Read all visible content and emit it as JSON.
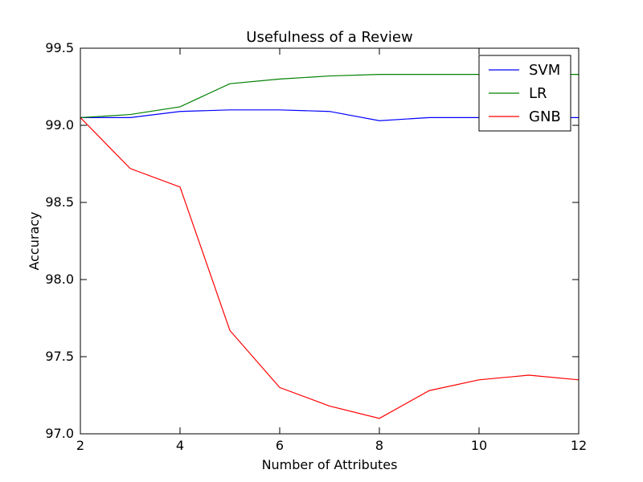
{
  "chart_data": {
    "type": "line",
    "title": "Usefulness of a Review",
    "xlabel": "Number of Attributes",
    "ylabel": "Accuracy",
    "xlim": [
      2,
      12
    ],
    "ylim": [
      97.0,
      99.5
    ],
    "x_ticks": [
      "2",
      "4",
      "6",
      "8",
      "10",
      "12"
    ],
    "y_ticks": [
      "97.0",
      "97.5",
      "98.0",
      "98.5",
      "99.0",
      "99.5"
    ],
    "grid": false,
    "legend_position": "top-right",
    "x": [
      2,
      3,
      4,
      5,
      6,
      7,
      8,
      9,
      10,
      11,
      12
    ],
    "series": [
      {
        "name": "SVM",
        "color": "#0000ff",
        "values": [
          99.05,
          99.05,
          99.09,
          99.1,
          99.1,
          99.09,
          99.03,
          99.05,
          99.05,
          99.05,
          99.05
        ]
      },
      {
        "name": "LR",
        "color": "#008000",
        "values": [
          99.05,
          99.07,
          99.12,
          99.27,
          99.3,
          99.32,
          99.33,
          99.33,
          99.33,
          99.33,
          99.33
        ]
      },
      {
        "name": "GNB",
        "color": "#ff0000",
        "values": [
          99.05,
          98.72,
          98.6,
          97.67,
          97.3,
          97.18,
          97.1,
          97.28,
          97.35,
          97.38,
          97.35
        ]
      }
    ]
  }
}
